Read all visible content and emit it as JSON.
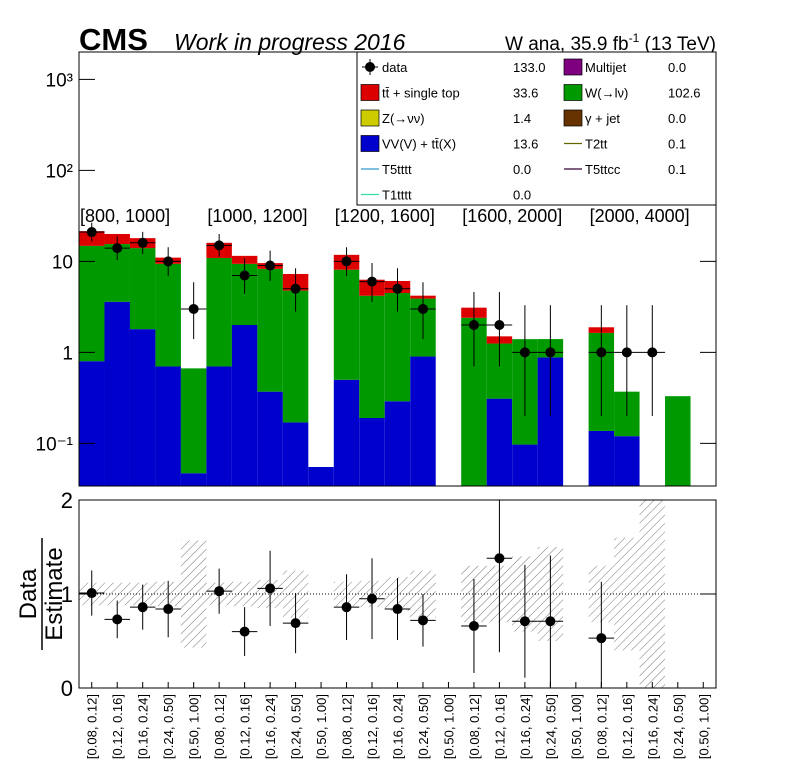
{
  "title": "CMS",
  "subtitle": "Work in progress 2016",
  "lumi": {
    "text": "W ana, 35.9 fb",
    "sup": "-1",
    "rest": " (13 TeV)"
  },
  "chart_data": [
    {
      "type": "stacked-log",
      "ylim": [
        0.034,
        2000
      ],
      "log_scale": true,
      "yticks": [
        {
          "value": 0.1,
          "label": "10⁻¹"
        },
        1,
        10,
        {
          "value": 100,
          "label": "10²"
        },
        {
          "value": 1000,
          "label": "10³"
        }
      ],
      "group_labels": [
        "[800, 1000]",
        "[1000, 1200]",
        "[1200, 1600]",
        "[1600, 2000]",
        "[2000, 4000]"
      ],
      "series": [
        {
          "name": "data",
          "color": "#000000",
          "style": "point",
          "yield": "133.0",
          "values": [
            21,
            14,
            16,
            10,
            3,
            15,
            7,
            9,
            5,
            null,
            10,
            6,
            5,
            3,
            null,
            2,
            2,
            1,
            1,
            null,
            1,
            1,
            1,
            null,
            null
          ],
          "errors_low": [
            4.5,
            3.7,
            4.0,
            3.1,
            1.6,
            3.8,
            2.6,
            2.9,
            2.2,
            null,
            3.1,
            2.4,
            2.2,
            1.6,
            null,
            1.3,
            1.3,
            0.8,
            0.8,
            null,
            0.8,
            0.8,
            0.8,
            null,
            null
          ],
          "errors_high": [
            5.6,
            4.8,
            5.1,
            4.3,
            2.9,
            5.0,
            3.8,
            4.1,
            3.4,
            null,
            4.3,
            3.6,
            3.4,
            2.9,
            null,
            2.6,
            2.6,
            2.3,
            2.3,
            null,
            2.3,
            2.3,
            2.3,
            null,
            null
          ]
        },
        {
          "name": "Multijet",
          "color": "#7f007f",
          "style": "fill",
          "yield": "0.0"
        },
        {
          "name": "tt̄ + single top",
          "color": "#dd0000",
          "style": "fill",
          "yield": "33.6",
          "stack": true,
          "values": [
            6.7,
            4.5,
            4,
            1.6,
            0,
            5.1,
            2.1,
            1.3,
            2.5,
            0,
            3.7,
            2.1,
            1.6,
            0.3,
            0,
            0.7,
            0.25,
            0,
            0,
            0,
            0.25,
            0,
            0,
            0,
            0
          ]
        },
        {
          "name": "W(→lν)",
          "color": "#009900",
          "style": "fill",
          "yield": "102.6",
          "stack": true,
          "values": [
            14,
            11.9,
            12.2,
            8.7,
            0.62,
            10.2,
            7.4,
            7.9,
            4.6,
            0,
            7.6,
            4.0,
            4.2,
            3.0,
            0,
            2.4,
            0.94,
            1.3,
            0.52,
            0,
            1.5,
            0.25,
            0,
            0.33,
            0
          ]
        },
        {
          "name": "Z(→νν)",
          "color": "#cccc00",
          "style": "fill",
          "yield": "1.4"
        },
        {
          "name": "γ + jet",
          "color": "#663300",
          "style": "fill",
          "yield": "0.0"
        },
        {
          "name": "VV(V) + tt̄(X)",
          "color": "#0000cc",
          "style": "fill",
          "yield": "13.6",
          "stack": true,
          "values": [
            0.8,
            3.6,
            1.8,
            0.7,
            0.047,
            0.7,
            2.0,
            0.37,
            0.17,
            0.055,
            0.5,
            0.19,
            0.29,
            0.9,
            0,
            0,
            0.31,
            0.097,
            0.88,
            0,
            0.137,
            0.12,
            0,
            0,
            0
          ]
        },
        {
          "name": "T2tt",
          "color": "#666600",
          "style": "line",
          "yield": "0.1"
        },
        {
          "name": "T5tttt",
          "color": "#3399cc",
          "style": "line",
          "yield": "0.0"
        },
        {
          "name": "T5ttcc",
          "color": "#330033",
          "style": "line",
          "yield": "0.1"
        },
        {
          "name": "T1tttt",
          "color": "#33ddaa",
          "style": "line",
          "yield": "0.0"
        }
      ]
    },
    {
      "type": "ratio",
      "y_label": "Data",
      "y_label_denominator": "Estimate",
      "ylim": [
        0,
        2
      ],
      "yticks": [
        0,
        1,
        2
      ],
      "reference_line": 1,
      "categories": [
        "[0.08, 0.12]",
        "[0.12, 0.16]",
        "[0.16, 0.24]",
        "[0.24, 0.50]",
        "[0.50, 1.00]",
        "[0.08, 0.12]",
        "[0.12, 0.16]",
        "[0.16, 0.24]",
        "[0.24, 0.50]",
        "[0.50, 1.00]",
        "[0.08, 0.12]",
        "[0.12, 0.16]",
        "[0.16, 0.24]",
        "[0.24, 0.50]",
        "[0.50, 1.00]",
        "[0.08, 0.12]",
        "[0.12, 0.16]",
        "[0.16, 0.24]",
        "[0.24, 0.50]",
        "[0.50, 1.00]",
        "[0.08, 0.12]",
        "[0.12, 0.16]",
        "[0.16, 0.24]",
        "[0.24, 0.50]",
        "[0.50, 1.00]"
      ],
      "values": [
        1.01,
        0.73,
        0.86,
        0.84,
        null,
        1.03,
        0.6,
        1.06,
        0.69,
        null,
        0.86,
        0.95,
        0.84,
        0.72,
        null,
        0.66,
        1.38,
        0.71,
        0.71,
        null,
        0.53,
        null,
        null,
        null,
        null
      ],
      "errors": [
        0.24,
        0.2,
        0.24,
        0.3,
        null,
        0.24,
        0.26,
        0.4,
        0.32,
        null,
        0.35,
        0.43,
        0.33,
        0.28,
        null,
        0.5,
        1,
        0.6,
        0.7,
        null,
        0.6,
        null,
        null,
        null,
        null
      ],
      "band": [
        0.12,
        0.12,
        0.12,
        0.13,
        0.57,
        0.12,
        0.13,
        0.15,
        0.25,
        null,
        0.13,
        0.14,
        0.18,
        0.25,
        null,
        0.3,
        0.3,
        0.4,
        0.5,
        null,
        0.3,
        0.6,
        1.0,
        null,
        null
      ]
    }
  ]
}
